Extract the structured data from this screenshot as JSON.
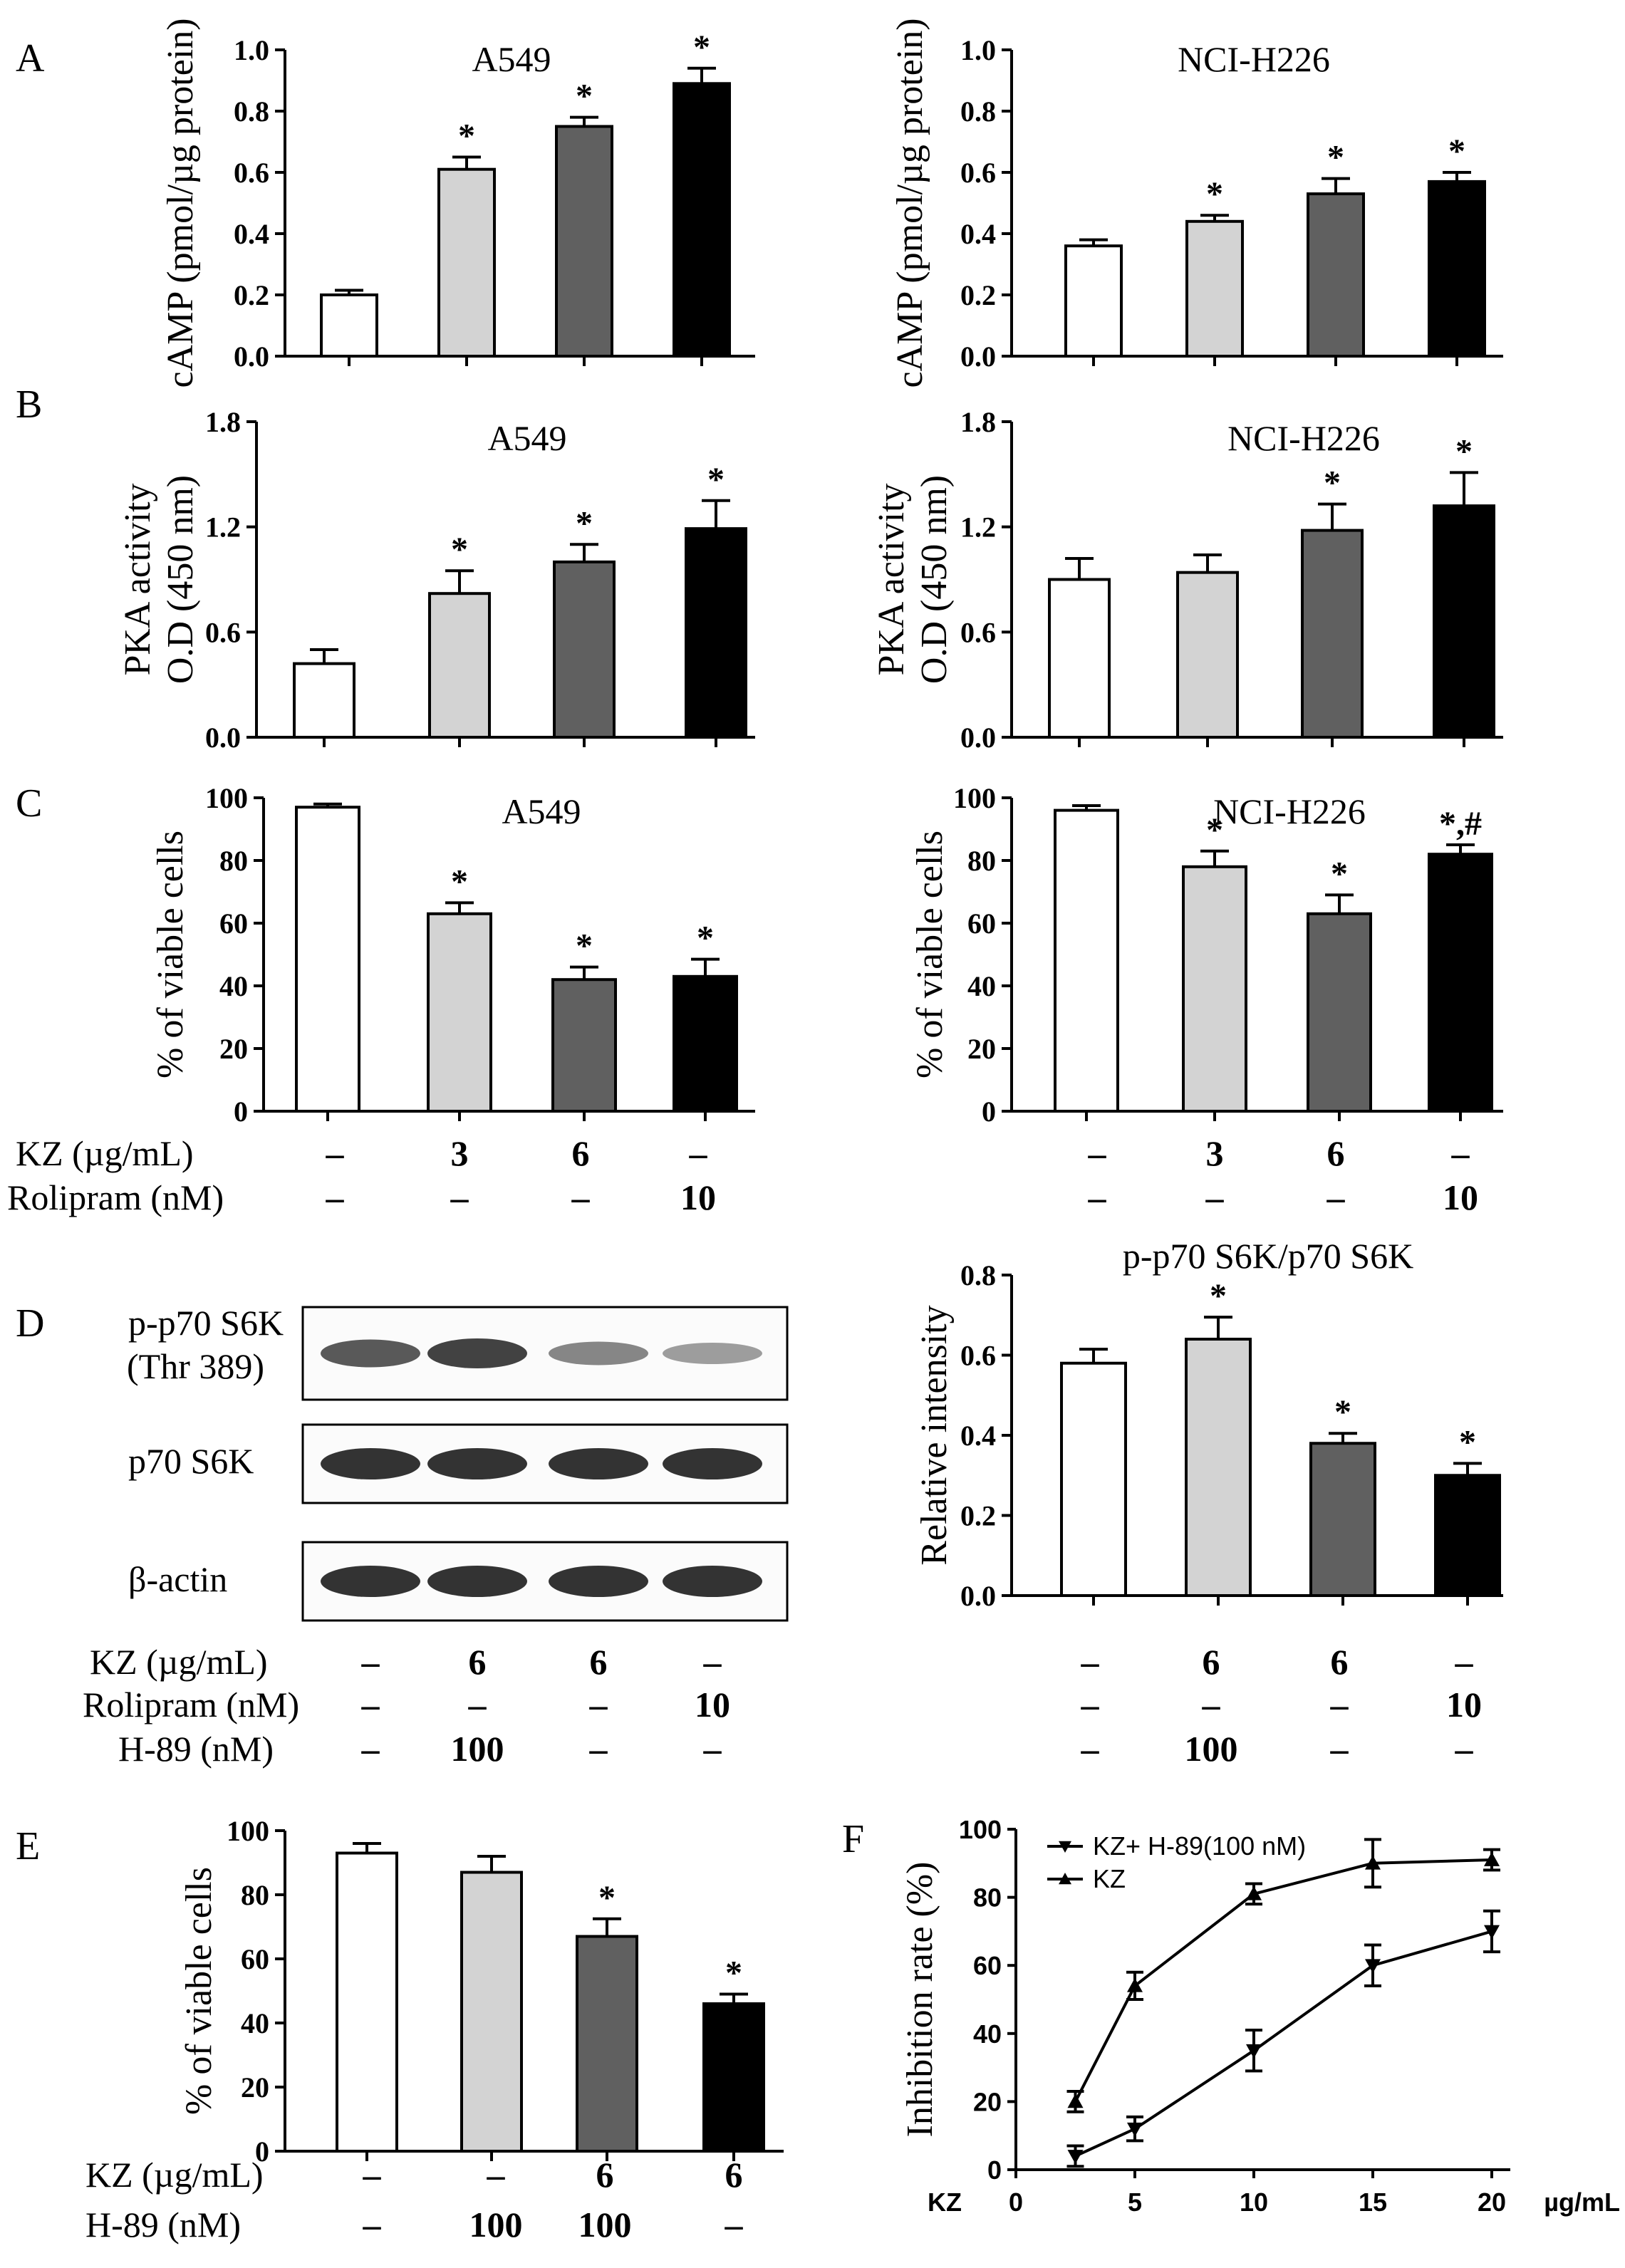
{
  "panel_letters": {
    "A": "A",
    "B": "B",
    "C": "C",
    "D": "D",
    "E": "E",
    "F": "F"
  },
  "colors": {
    "control": "#ffffff",
    "light_gray": "#d3d3d3",
    "dark_gray": "#606060",
    "black": "#000000",
    "stroke": "#000000"
  },
  "conditions_ac": {
    "row1_label": "KZ (µg/mL)",
    "row1": [
      "–",
      "3",
      "6",
      "–"
    ],
    "row2_label": "Rolipram (nM)",
    "row2": [
      "–",
      "–",
      "–",
      "10"
    ]
  },
  "conditions_d": {
    "row1_label": "KZ (µg/mL)",
    "row1": [
      "–",
      "6",
      "6",
      "–"
    ],
    "row2_label": "Rolipram (nM)",
    "row2": [
      "–",
      "–",
      "–",
      "10"
    ],
    "row3_label": "H-89 (nM)",
    "row3": [
      "–",
      "100",
      "–",
      "–"
    ]
  },
  "conditions_e": {
    "row1_label": "KZ (µg/mL)",
    "row1": [
      "–",
      "–",
      "6",
      "6"
    ],
    "row2_label": "H-89 (nM)",
    "row2": [
      "–",
      "100",
      "100",
      "–"
    ]
  },
  "blot": {
    "rows": [
      {
        "label_line1": "p-p70 S6K",
        "label_line2": "(Thr 389)",
        "intensities": [
          0.75,
          0.9,
          0.45,
          0.3
        ]
      },
      {
        "label_line1": "p70 S6K",
        "label_line2": "",
        "intensities": [
          1.0,
          1.0,
          1.0,
          1.0
        ]
      },
      {
        "label_line1": "β-actin",
        "label_line2": "",
        "intensities": [
          1.0,
          1.0,
          1.0,
          1.0
        ]
      }
    ]
  },
  "chart_data": [
    {
      "id": "A-left",
      "type": "bar",
      "panel": "A",
      "title": "A549",
      "ylabel": "cAMP (pmol/µg protein)",
      "ylim": [
        0,
        1.0
      ],
      "yticks": [
        "0.0",
        "0.2",
        "0.4",
        "0.6",
        "0.8",
        "1.0"
      ],
      "values": [
        0.2,
        0.61,
        0.75,
        0.89
      ],
      "errors": [
        0.015,
        0.04,
        0.03,
        0.05
      ],
      "annotations": [
        "",
        "*",
        "*",
        "*"
      ]
    },
    {
      "id": "A-right",
      "type": "bar",
      "panel": "A",
      "title": "NCI-H226",
      "ylabel": "cAMP (pmol/µg protein)",
      "ylim": [
        0,
        1.0
      ],
      "yticks": [
        "0.0",
        "0.2",
        "0.4",
        "0.6",
        "0.8",
        "1.0"
      ],
      "values": [
        0.36,
        0.44,
        0.53,
        0.57
      ],
      "errors": [
        0.02,
        0.02,
        0.05,
        0.03
      ],
      "annotations": [
        "",
        "*",
        "*",
        "*"
      ]
    },
    {
      "id": "B-left",
      "type": "bar",
      "panel": "B",
      "title": "A549",
      "ylabel_lines": [
        "PKA activity",
        "O.D (450 nm)"
      ],
      "ylim": [
        0,
        1.8
      ],
      "yticks": [
        "0.0",
        "0.6",
        "1.2",
        "1.8"
      ],
      "values": [
        0.42,
        0.82,
        1.0,
        1.19
      ],
      "errors": [
        0.08,
        0.13,
        0.1,
        0.16
      ],
      "annotations": [
        "",
        "*",
        "*",
        "*"
      ]
    },
    {
      "id": "B-right",
      "type": "bar",
      "panel": "B",
      "title": "NCI-H226",
      "ylabel_lines": [
        "PKA activity",
        "O.D (450 nm)"
      ],
      "ylim": [
        0,
        1.8
      ],
      "yticks": [
        "0.0",
        "0.6",
        "1.2",
        "1.8"
      ],
      "values": [
        0.9,
        0.94,
        1.18,
        1.32
      ],
      "errors": [
        0.12,
        0.1,
        0.15,
        0.19
      ],
      "annotations": [
        "",
        "",
        "*",
        "*"
      ]
    },
    {
      "id": "C-left",
      "type": "bar",
      "panel": "C",
      "title": "A549",
      "ylabel": "% of viable cells",
      "ylim": [
        0,
        100
      ],
      "yticks": [
        "0",
        "20",
        "40",
        "60",
        "80",
        "100"
      ],
      "values": [
        97,
        63,
        42,
        43
      ],
      "errors": [
        1,
        3.5,
        4,
        5.5
      ],
      "annotations": [
        "",
        "*",
        "*",
        "*"
      ]
    },
    {
      "id": "C-right",
      "type": "bar",
      "panel": "C",
      "title": "NCI-H226",
      "ylabel": "%  of viable cells",
      "ylim": [
        0,
        100
      ],
      "yticks": [
        "0",
        "20",
        "40",
        "60",
        "80",
        "100"
      ],
      "values": [
        96,
        78,
        63,
        82
      ],
      "errors": [
        1.5,
        5,
        6,
        3
      ],
      "annotations": [
        "",
        "*",
        "*",
        "*,#"
      ]
    },
    {
      "id": "D-right",
      "type": "bar",
      "panel": "D",
      "title": "p-p70 S6K/p70 S6K",
      "ylabel": "Relative intensity",
      "ylim": [
        0,
        0.8
      ],
      "yticks": [
        "0.0",
        "0.2",
        "0.4",
        "0.6",
        "0.8"
      ],
      "values": [
        0.58,
        0.64,
        0.38,
        0.3
      ],
      "errors": [
        0.035,
        0.055,
        0.025,
        0.03
      ],
      "annotations": [
        "",
        "*",
        "*",
        "*"
      ]
    },
    {
      "id": "E",
      "type": "bar",
      "panel": "E",
      "title": "",
      "ylabel": "%  of viable cells",
      "ylim": [
        0,
        100
      ],
      "yticks": [
        "0",
        "20",
        "40",
        "60",
        "80",
        "100"
      ],
      "values": [
        93,
        87,
        67,
        46
      ],
      "errors": [
        3,
        5,
        5.5,
        3
      ],
      "annotations": [
        "",
        "",
        "*",
        "*"
      ]
    },
    {
      "id": "F",
      "type": "line",
      "panel": "F",
      "title": "",
      "ylabel": "Inhibition rate (%)",
      "x_prefix": "KZ",
      "x_unit": "µg/mL",
      "xlim": [
        0,
        20
      ],
      "ylim": [
        0,
        100
      ],
      "xticks": [
        "0",
        "5",
        "10",
        "15",
        "20"
      ],
      "yticks": [
        "0",
        "20",
        "40",
        "60",
        "80",
        "100"
      ],
      "series": [
        {
          "name": "KZ+ H-89(100 nM)",
          "marker": "down",
          "x": [
            2.5,
            5,
            10,
            15,
            20
          ],
          "y": [
            4,
            12,
            35,
            60,
            70
          ],
          "err": [
            3,
            3.5,
            6,
            6,
            6
          ]
        },
        {
          "name": "KZ",
          "marker": "up",
          "x": [
            2.5,
            5,
            10,
            15,
            20
          ],
          "y": [
            20,
            54,
            81,
            90,
            91
          ],
          "err": [
            3,
            4,
            3,
            7,
            3
          ]
        }
      ],
      "legend_position": "top-left"
    }
  ]
}
